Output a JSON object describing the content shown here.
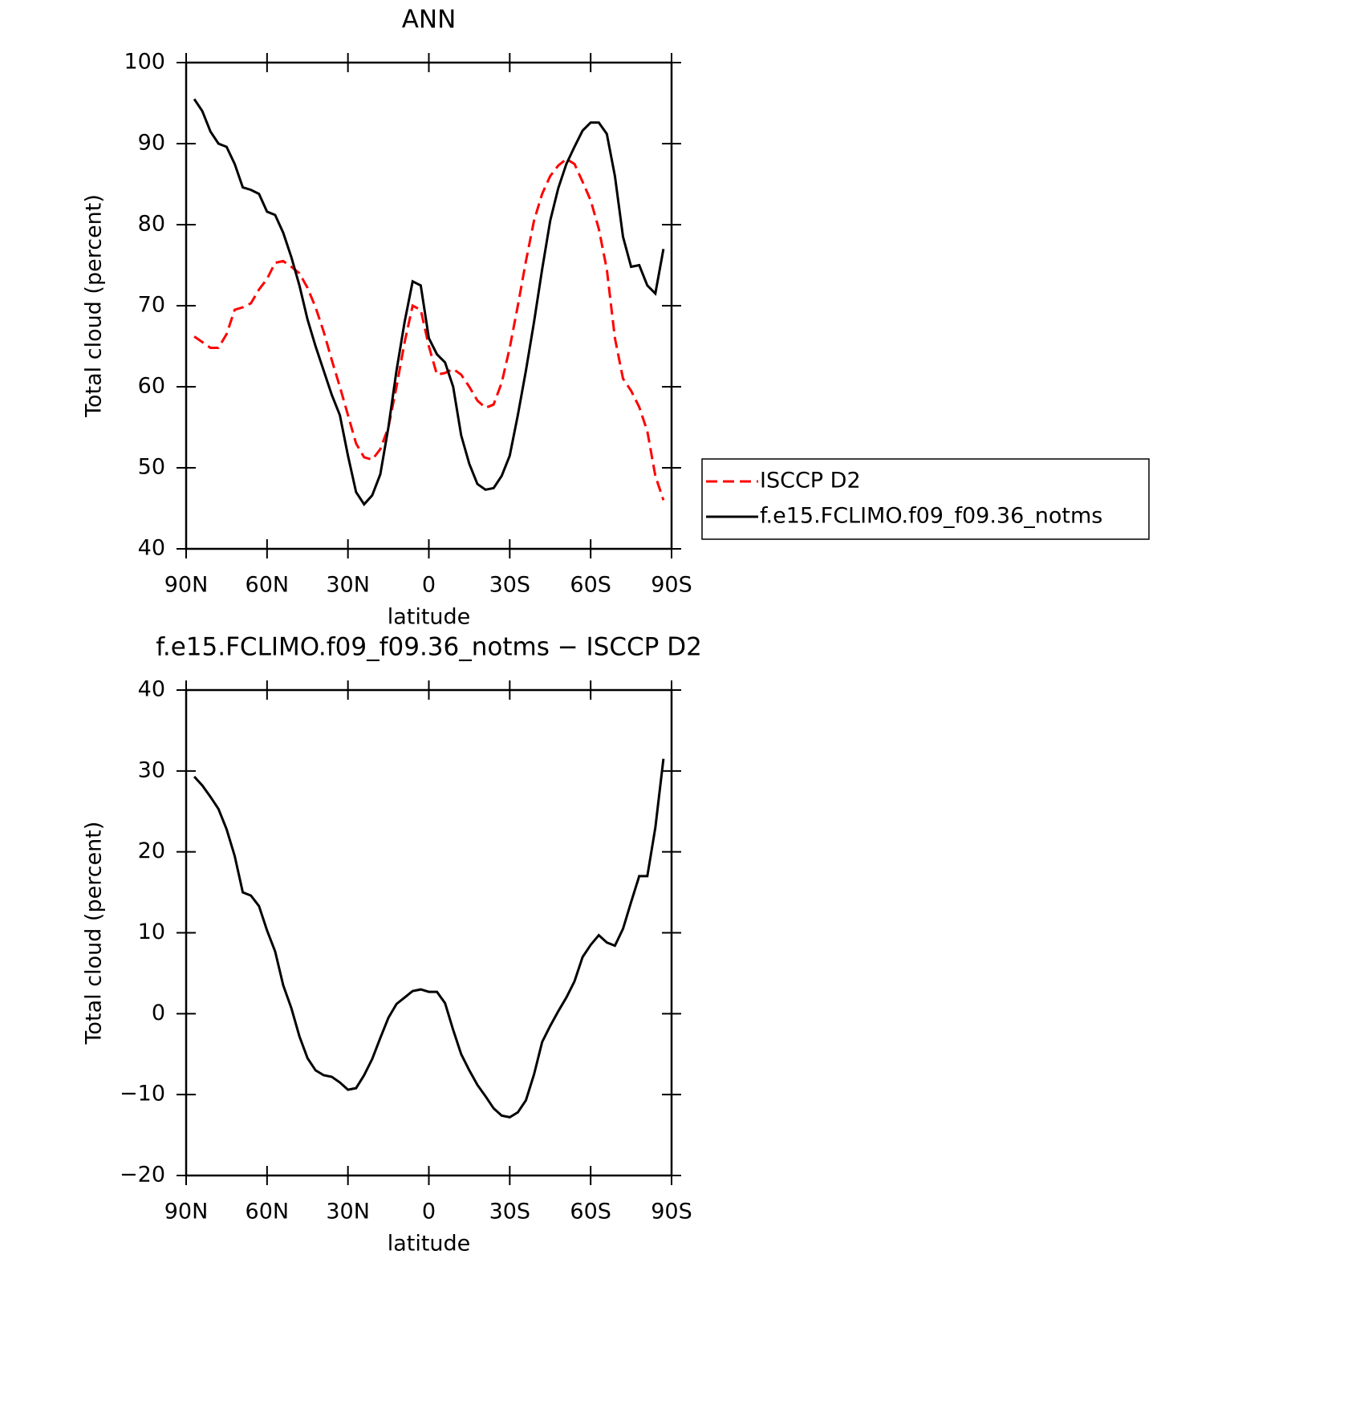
{
  "chart_data": [
    {
      "type": "line",
      "title": "ANN",
      "xlabel": "latitude",
      "ylabel": "Total cloud (percent)",
      "x": [
        87,
        84,
        81,
        78,
        75,
        72,
        69,
        66,
        63,
        60,
        57,
        54,
        51,
        48,
        45,
        42,
        39,
        36,
        33,
        30,
        27,
        24,
        21,
        18,
        15,
        12,
        9,
        6,
        3,
        0,
        -3,
        -6,
        -9,
        -12,
        -15,
        -18,
        -21,
        -24,
        -27,
        -30,
        -33,
        -36,
        -39,
        -42,
        -45,
        -48,
        -51,
        -54,
        -57,
        -60,
        -63,
        -66,
        -69,
        -72,
        -75,
        -78,
        -81,
        -84,
        -87
      ],
      "xlim": [
        90,
        -90
      ],
      "xticks": [
        {
          "value": 90,
          "label": "90N"
        },
        {
          "value": 60,
          "label": "60N"
        },
        {
          "value": 30,
          "label": "30N"
        },
        0,
        {
          "value": -30,
          "label": "30S"
        },
        {
          "value": -60,
          "label": "60S"
        },
        {
          "value": -90,
          "label": "90S"
        }
      ],
      "ylim": [
        40,
        100
      ],
      "yticks": [
        40,
        50,
        60,
        70,
        80,
        90,
        100
      ],
      "legend": "right",
      "series": [
        {
          "name": "ISCCP D2",
          "color": "#ff0000",
          "line_style": "dashed",
          "values": [
            66.2,
            65.5,
            64.8,
            64.8,
            66.5,
            69.5,
            69.8,
            70.3,
            72,
            73.3,
            75.3,
            75.5,
            74.8,
            74,
            72.2,
            69.8,
            66.8,
            63.3,
            60,
            56.5,
            53,
            51.3,
            51,
            52.3,
            55,
            60,
            65.5,
            70,
            69.5,
            65,
            61.5,
            61.7,
            62.2,
            61.5,
            60,
            58.3,
            57.4,
            57.8,
            60.5,
            64.8,
            70,
            75.5,
            80.5,
            83.8,
            86,
            87.3,
            88.1,
            87.5,
            85.3,
            83,
            79.5,
            74.5,
            66,
            61,
            59.5,
            57.5,
            54.5,
            49,
            46
          ]
        },
        {
          "name": "f.e15.FCLIMO.f09_f09.36_notms",
          "color": "#000000",
          "line_style": "solid",
          "values": [
            95.5,
            94,
            91.5,
            90,
            89.6,
            87.5,
            84.6,
            84.3,
            83.8,
            81.6,
            81.2,
            79,
            76,
            72.5,
            68.3,
            65,
            62,
            59,
            56.5,
            51.5,
            47,
            45.5,
            46.6,
            49.2,
            55,
            62,
            68,
            73,
            72.5,
            66,
            64,
            63,
            60,
            54,
            50.5,
            48,
            47.3,
            47.5,
            49,
            51.5,
            56.5,
            62,
            68,
            74.5,
            80.5,
            84.5,
            87.5,
            89.6,
            91.6,
            92.6,
            92.6,
            91.2,
            86,
            78.5,
            74.8,
            75,
            72.5,
            71.5,
            77
          ]
        }
      ]
    },
    {
      "type": "line",
      "title": "f.e15.FCLIMO.f09_f09.36_notms − ISCCP D2",
      "xlabel": "latitude",
      "ylabel": "Total cloud (percent)",
      "x": [
        87,
        84,
        81,
        78,
        75,
        72,
        69,
        66,
        63,
        60,
        57,
        54,
        51,
        48,
        45,
        42,
        39,
        36,
        33,
        30,
        27,
        24,
        21,
        18,
        15,
        12,
        9,
        6,
        3,
        0,
        -3,
        -6,
        -9,
        -12,
        -15,
        -18,
        -21,
        -24,
        -27,
        -30,
        -33,
        -36,
        -39,
        -42,
        -45,
        -48,
        -51,
        -54,
        -57,
        -60,
        -63,
        -66,
        -69,
        -72,
        -75,
        -78,
        -81,
        -84,
        -87
      ],
      "xlim": [
        90,
        -90
      ],
      "xticks": [
        {
          "value": 90,
          "label": "90N"
        },
        {
          "value": 60,
          "label": "60N"
        },
        {
          "value": 30,
          "label": "30N"
        },
        0,
        {
          "value": -30,
          "label": "30S"
        },
        {
          "value": -60,
          "label": "60S"
        },
        {
          "value": -90,
          "label": "90S"
        }
      ],
      "ylim": [
        -20,
        40
      ],
      "yticks": [
        {
          "value": -20,
          "label": "−20"
        },
        {
          "value": -10,
          "label": "−10"
        },
        0,
        10,
        20,
        30,
        40
      ],
      "series": [
        {
          "color": "#000000",
          "line_style": "solid",
          "values": [
            29.3,
            28.2,
            26.8,
            25.3,
            22.8,
            19.5,
            15,
            14.6,
            13.3,
            10.3,
            7.7,
            3.5,
            0.7,
            -2.8,
            -5.5,
            -7,
            -7.6,
            -7.8,
            -8.5,
            -9.4,
            -9.2,
            -7.6,
            -5.6,
            -3,
            -0.5,
            1.2,
            2,
            2.8,
            3,
            2.7,
            2.7,
            1.3,
            -2,
            -5,
            -7,
            -8.8,
            -10.2,
            -11.7,
            -12.6,
            -12.8,
            -12.2,
            -10.7,
            -7.5,
            -3.5,
            -1.5,
            0.3,
            2,
            4,
            7,
            8.5,
            9.7,
            8.8,
            8.4,
            10.5,
            13.8,
            17,
            17,
            23,
            31.5
          ]
        }
      ]
    }
  ]
}
